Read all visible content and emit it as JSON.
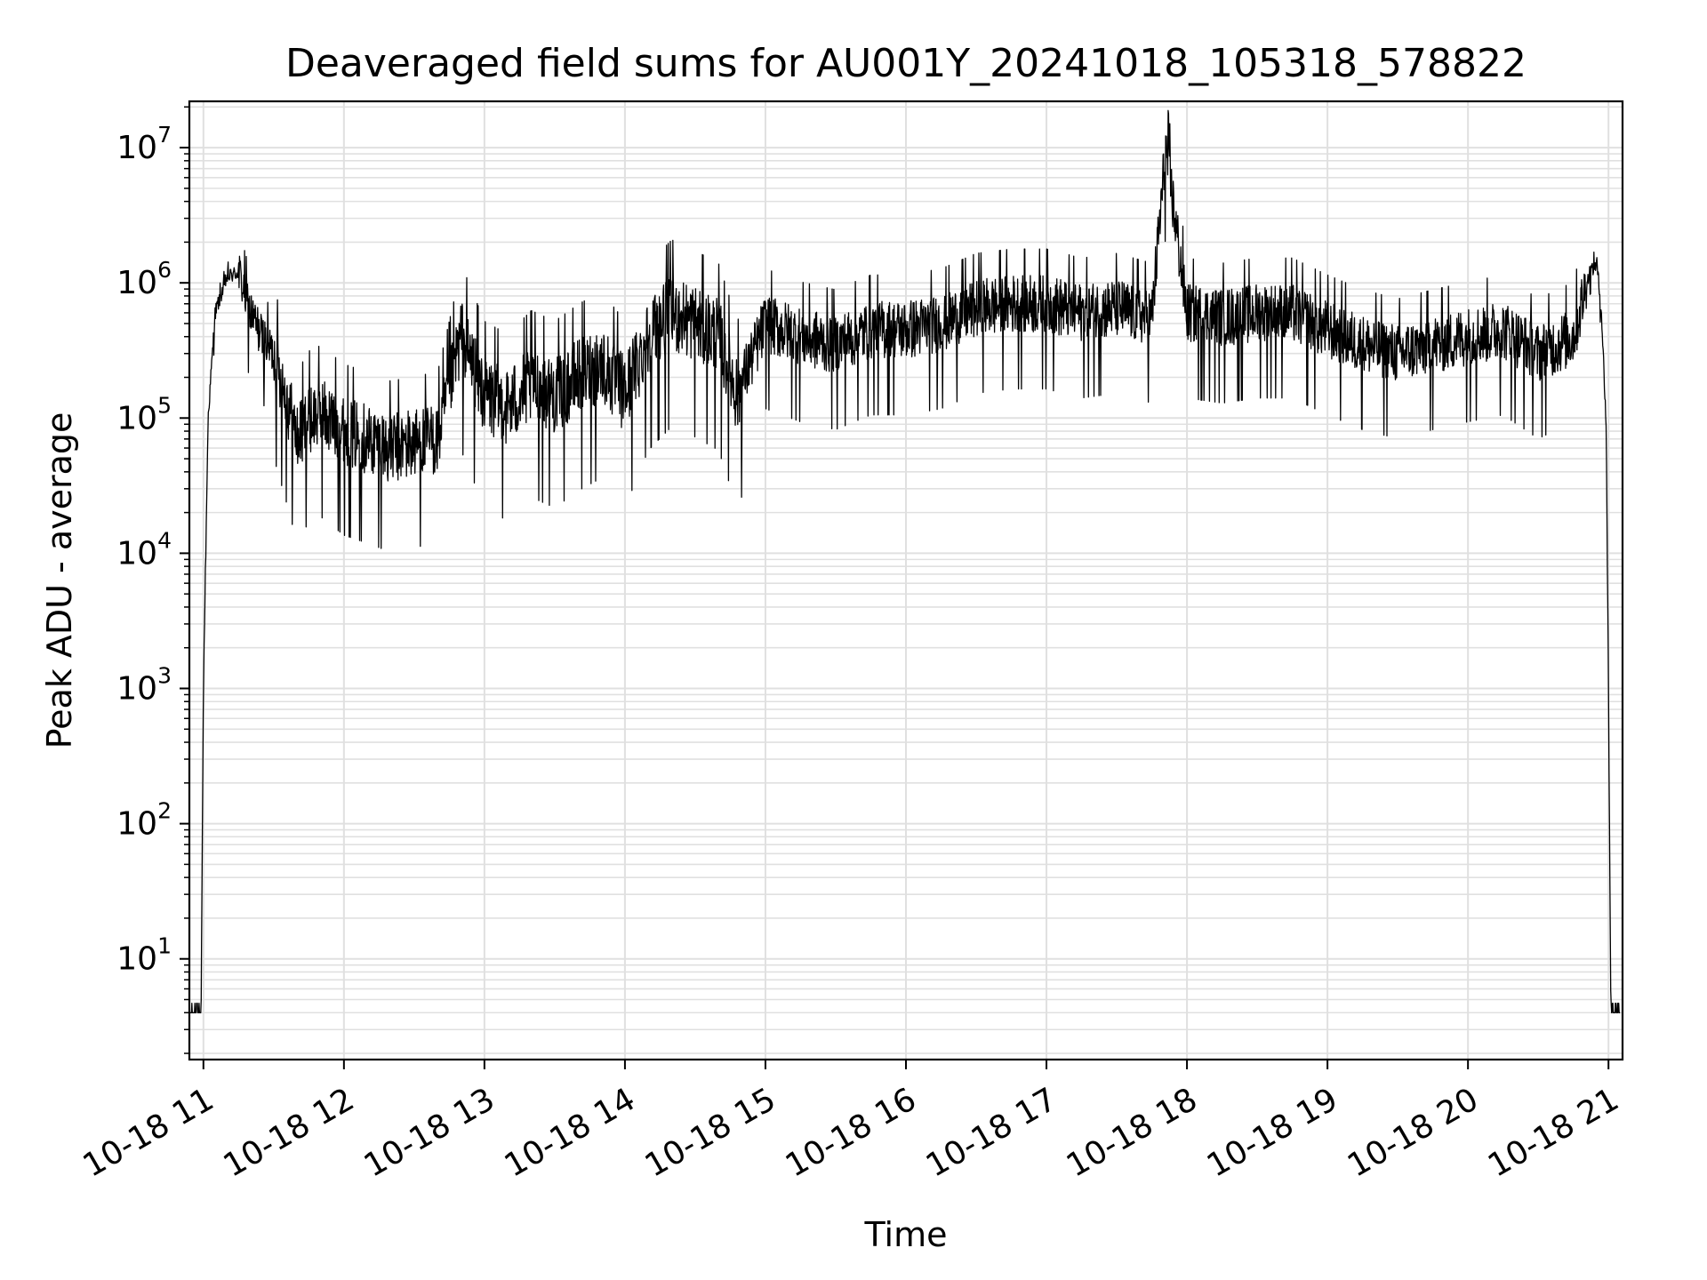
{
  "chart_data": {
    "type": "line",
    "title": "Deaveraged field sums for AU001Y_20241018_105318_578822",
    "xlabel": "Time",
    "ylabel": "Peak ADU - average",
    "y_scale": "log",
    "ylim": [
      1.8,
      22000000
    ],
    "xlim": [
      "2024-10-18 10:54",
      "2024-10-18 21:06"
    ],
    "grid": true,
    "line_color": "#000000",
    "grid_color": "#e0e0e0",
    "x_ticks": [
      "10-18 11",
      "10-18 12",
      "10-18 13",
      "10-18 14",
      "10-18 15",
      "10-18 16",
      "10-18 17",
      "10-18 18",
      "10-18 19",
      "10-18 20",
      "10-18 21"
    ],
    "y_ticks": [
      {
        "base": "10",
        "exp": "1"
      },
      {
        "base": "10",
        "exp": "2"
      },
      {
        "base": "10",
        "exp": "3"
      },
      {
        "base": "10",
        "exp": "4"
      },
      {
        "base": "10",
        "exp": "5"
      },
      {
        "base": "10",
        "exp": "6"
      },
      {
        "base": "10",
        "exp": "7"
      }
    ],
    "series": [
      {
        "x": [
          "10:54",
          "10:55",
          "10:56",
          "10:57",
          "10:58",
          "10:59",
          "11:00",
          "11:02",
          "11:05",
          "11:10",
          "11:15",
          "11:20",
          "11:25",
          "11:30",
          "11:35",
          "11:40",
          "11:45",
          "11:50",
          "12:00",
          "12:10",
          "12:20",
          "12:30",
          "12:40",
          "12:50",
          "13:00",
          "13:10",
          "13:20",
          "13:30",
          "13:40",
          "13:50",
          "14:00",
          "14:10",
          "14:20",
          "14:30",
          "14:40",
          "14:48",
          "15:00",
          "15:15",
          "15:30",
          "15:45",
          "16:00",
          "16:15",
          "16:30",
          "16:45",
          "17:00",
          "17:15",
          "17:30",
          "17:45",
          "17:51",
          "18:00",
          "18:15",
          "18:30",
          "18:45",
          "19:00",
          "19:15",
          "19:30",
          "19:45",
          "20:00",
          "20:15",
          "20:30",
          "20:45",
          "20:52",
          "20:55",
          "20:57",
          "20:59",
          "21:00",
          "21:01",
          "21:02",
          "21:03",
          "21:04",
          "21:05"
        ],
        "y": [
          4,
          4,
          4,
          4,
          4,
          4,
          1000,
          100000,
          600000,
          1100000,
          1200000,
          600000,
          400000,
          300000,
          150000,
          70000,
          100000,
          110000,
          80000,
          70000,
          60000,
          65000,
          70000,
          400000,
          150000,
          120000,
          180000,
          150000,
          200000,
          250000,
          150000,
          400000,
          600000,
          500000,
          400000,
          150000,
          500000,
          400000,
          350000,
          450000,
          450000,
          500000,
          650000,
          700000,
          700000,
          600000,
          650000,
          550000,
          10000000,
          600000,
          550000,
          600000,
          600000,
          450000,
          350000,
          300000,
          350000,
          400000,
          450000,
          300000,
          400000,
          1200000,
          1400000,
          600000,
          90000,
          1000,
          4,
          4,
          4,
          4,
          4
        ]
      }
    ]
  }
}
